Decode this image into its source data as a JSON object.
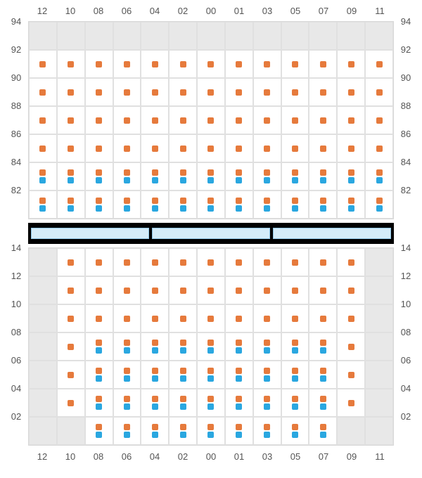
{
  "colors": {
    "orange": "#e67a3c",
    "blue": "#2aa7e0",
    "grey": "#e8e8e8",
    "white": "#ffffff",
    "border": "#e0e0e0",
    "sep_bg": "#000000",
    "sep_fill": "#d4ecf9",
    "sep_border": "#8fc7e8",
    "text": "#555555"
  },
  "columns": [
    "12",
    "10",
    "08",
    "06",
    "04",
    "02",
    "00",
    "01",
    "03",
    "05",
    "07",
    "09",
    "11"
  ],
  "upper": {
    "row_labels": [
      "94",
      "92",
      "90",
      "88",
      "86",
      "84",
      "82"
    ],
    "cells": [
      [
        [
          "g"
        ],
        [
          "g"
        ],
        [
          "g"
        ],
        [
          "g"
        ],
        [
          "g"
        ],
        [
          "g"
        ],
        [
          "g"
        ],
        [
          "g"
        ],
        [
          "g"
        ],
        [
          "g"
        ],
        [
          "g"
        ],
        [
          "g"
        ],
        [
          "g"
        ]
      ],
      [
        [
          "w",
          "o"
        ],
        [
          "w",
          "o"
        ],
        [
          "w",
          "o"
        ],
        [
          "w",
          "o"
        ],
        [
          "w",
          "o"
        ],
        [
          "w",
          "o"
        ],
        [
          "w",
          "o"
        ],
        [
          "w",
          "o"
        ],
        [
          "w",
          "o"
        ],
        [
          "w",
          "o"
        ],
        [
          "w",
          "o"
        ],
        [
          "w",
          "o"
        ],
        [
          "w",
          "o"
        ]
      ],
      [
        [
          "w",
          "o"
        ],
        [
          "w",
          "o"
        ],
        [
          "w",
          "o"
        ],
        [
          "w",
          "o"
        ],
        [
          "w",
          "o"
        ],
        [
          "w",
          "o"
        ],
        [
          "w",
          "o"
        ],
        [
          "w",
          "o"
        ],
        [
          "w",
          "o"
        ],
        [
          "w",
          "o"
        ],
        [
          "w",
          "o"
        ],
        [
          "w",
          "o"
        ],
        [
          "w",
          "o"
        ]
      ],
      [
        [
          "w",
          "o"
        ],
        [
          "w",
          "o"
        ],
        [
          "w",
          "o"
        ],
        [
          "w",
          "o"
        ],
        [
          "w",
          "o"
        ],
        [
          "w",
          "o"
        ],
        [
          "w",
          "o"
        ],
        [
          "w",
          "o"
        ],
        [
          "w",
          "o"
        ],
        [
          "w",
          "o"
        ],
        [
          "w",
          "o"
        ],
        [
          "w",
          "o"
        ],
        [
          "w",
          "o"
        ]
      ],
      [
        [
          "w",
          "o"
        ],
        [
          "w",
          "o"
        ],
        [
          "w",
          "o"
        ],
        [
          "w",
          "o"
        ],
        [
          "w",
          "o"
        ],
        [
          "w",
          "o"
        ],
        [
          "w",
          "o"
        ],
        [
          "w",
          "o"
        ],
        [
          "w",
          "o"
        ],
        [
          "w",
          "o"
        ],
        [
          "w",
          "o"
        ],
        [
          "w",
          "o"
        ],
        [
          "w",
          "o"
        ]
      ],
      [
        [
          "w",
          "o",
          "b"
        ],
        [
          "w",
          "o",
          "b"
        ],
        [
          "w",
          "o",
          "b"
        ],
        [
          "w",
          "o",
          "b"
        ],
        [
          "w",
          "o",
          "b"
        ],
        [
          "w",
          "o",
          "b"
        ],
        [
          "w",
          "o",
          "b"
        ],
        [
          "w",
          "o",
          "b"
        ],
        [
          "w",
          "o",
          "b"
        ],
        [
          "w",
          "o",
          "b"
        ],
        [
          "w",
          "o",
          "b"
        ],
        [
          "w",
          "o",
          "b"
        ],
        [
          "w",
          "o",
          "b"
        ]
      ],
      [
        [
          "w",
          "o",
          "b"
        ],
        [
          "w",
          "o",
          "b"
        ],
        [
          "w",
          "o",
          "b"
        ],
        [
          "w",
          "o",
          "b"
        ],
        [
          "w",
          "o",
          "b"
        ],
        [
          "w",
          "o",
          "b"
        ],
        [
          "w",
          "o",
          "b"
        ],
        [
          "w",
          "o",
          "b"
        ],
        [
          "w",
          "o",
          "b"
        ],
        [
          "w",
          "o",
          "b"
        ],
        [
          "w",
          "o",
          "b"
        ],
        [
          "w",
          "o",
          "b"
        ],
        [
          "w",
          "o",
          "b"
        ]
      ]
    ]
  },
  "separator_segments": 3,
  "lower": {
    "row_labels": [
      "14",
      "12",
      "10",
      "08",
      "06",
      "04",
      "02"
    ],
    "cells": [
      [
        [
          "g"
        ],
        [
          "w",
          "o"
        ],
        [
          "w",
          "o"
        ],
        [
          "w",
          "o"
        ],
        [
          "w",
          "o"
        ],
        [
          "w",
          "o"
        ],
        [
          "w",
          "o"
        ],
        [
          "w",
          "o"
        ],
        [
          "w",
          "o"
        ],
        [
          "w",
          "o"
        ],
        [
          "w",
          "o"
        ],
        [
          "w",
          "o"
        ],
        [
          "g"
        ]
      ],
      [
        [
          "g"
        ],
        [
          "w",
          "o"
        ],
        [
          "w",
          "o"
        ],
        [
          "w",
          "o"
        ],
        [
          "w",
          "o"
        ],
        [
          "w",
          "o"
        ],
        [
          "w",
          "o"
        ],
        [
          "w",
          "o"
        ],
        [
          "w",
          "o"
        ],
        [
          "w",
          "o"
        ],
        [
          "w",
          "o"
        ],
        [
          "w",
          "o"
        ],
        [
          "g"
        ]
      ],
      [
        [
          "g"
        ],
        [
          "w",
          "o"
        ],
        [
          "w",
          "o"
        ],
        [
          "w",
          "o"
        ],
        [
          "w",
          "o"
        ],
        [
          "w",
          "o"
        ],
        [
          "w",
          "o"
        ],
        [
          "w",
          "o"
        ],
        [
          "w",
          "o"
        ],
        [
          "w",
          "o"
        ],
        [
          "w",
          "o"
        ],
        [
          "w",
          "o"
        ],
        [
          "g"
        ]
      ],
      [
        [
          "g"
        ],
        [
          "w",
          "o"
        ],
        [
          "w",
          "o",
          "b"
        ],
        [
          "w",
          "o",
          "b"
        ],
        [
          "w",
          "o",
          "b"
        ],
        [
          "w",
          "o",
          "b"
        ],
        [
          "w",
          "o",
          "b"
        ],
        [
          "w",
          "o",
          "b"
        ],
        [
          "w",
          "o",
          "b"
        ],
        [
          "w",
          "o",
          "b"
        ],
        [
          "w",
          "o",
          "b"
        ],
        [
          "w",
          "o"
        ],
        [
          "g"
        ]
      ],
      [
        [
          "g"
        ],
        [
          "w",
          "o"
        ],
        [
          "w",
          "o",
          "b"
        ],
        [
          "w",
          "o",
          "b"
        ],
        [
          "w",
          "o",
          "b"
        ],
        [
          "w",
          "o",
          "b"
        ],
        [
          "w",
          "o",
          "b"
        ],
        [
          "w",
          "o",
          "b"
        ],
        [
          "w",
          "o",
          "b"
        ],
        [
          "w",
          "o",
          "b"
        ],
        [
          "w",
          "o",
          "b"
        ],
        [
          "w",
          "o"
        ],
        [
          "g"
        ]
      ],
      [
        [
          "g"
        ],
        [
          "w",
          "o"
        ],
        [
          "w",
          "o",
          "b"
        ],
        [
          "w",
          "o",
          "b"
        ],
        [
          "w",
          "o",
          "b"
        ],
        [
          "w",
          "o",
          "b"
        ],
        [
          "w",
          "o",
          "b"
        ],
        [
          "w",
          "o",
          "b"
        ],
        [
          "w",
          "o",
          "b"
        ],
        [
          "w",
          "o",
          "b"
        ],
        [
          "w",
          "o",
          "b"
        ],
        [
          "w",
          "o"
        ],
        [
          "g"
        ]
      ],
      [
        [
          "g"
        ],
        [
          "g"
        ],
        [
          "w",
          "o",
          "b"
        ],
        [
          "w",
          "o",
          "b"
        ],
        [
          "w",
          "o",
          "b"
        ],
        [
          "w",
          "o",
          "b"
        ],
        [
          "w",
          "o",
          "b"
        ],
        [
          "w",
          "o",
          "b"
        ],
        [
          "w",
          "o",
          "b"
        ],
        [
          "w",
          "o",
          "b"
        ],
        [
          "w",
          "o",
          "b"
        ],
        [
          "g"
        ],
        [
          "g"
        ]
      ]
    ]
  }
}
